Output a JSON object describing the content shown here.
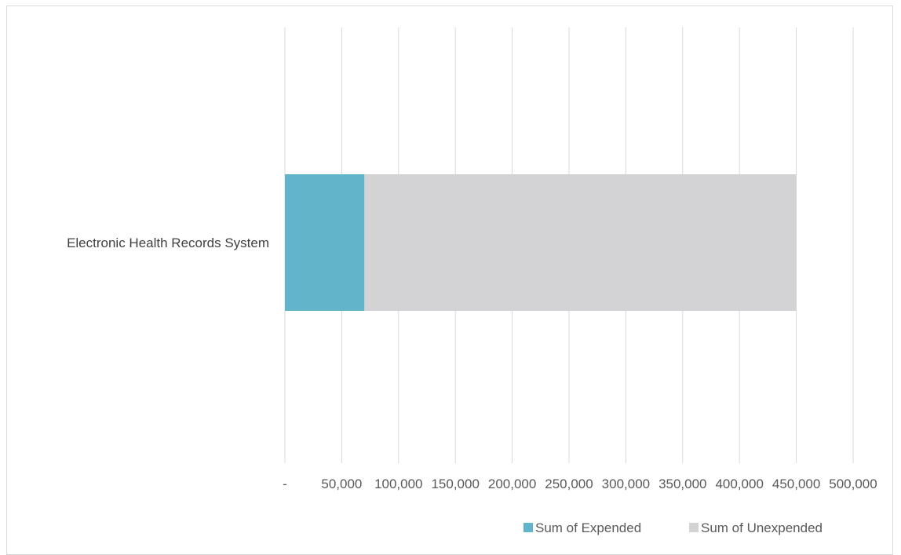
{
  "chart_data": {
    "type": "bar",
    "orientation": "horizontal",
    "stacked": true,
    "categories": [
      "Electronic Health Records System"
    ],
    "series": [
      {
        "name": "Sum of Expended",
        "values": [
          70000
        ],
        "color": "#62B4CB"
      },
      {
        "name": "Sum of Unexpended",
        "values": [
          380000
        ],
        "color": "#D3D3D5"
      }
    ],
    "xlim": [
      0,
      500000
    ],
    "x_ticks": [
      0,
      50000,
      100000,
      150000,
      200000,
      250000,
      300000,
      350000,
      400000,
      450000,
      500000
    ],
    "x_tick_labels": [
      "-",
      "50,000",
      "100,000",
      "150,000",
      "200,000",
      "250,000",
      "300,000",
      "350,000",
      "400,000",
      "450,000",
      "500,000"
    ],
    "grid": "vertical",
    "legend_position": "bottom-right",
    "title": "",
    "xlabel": "",
    "ylabel": ""
  }
}
